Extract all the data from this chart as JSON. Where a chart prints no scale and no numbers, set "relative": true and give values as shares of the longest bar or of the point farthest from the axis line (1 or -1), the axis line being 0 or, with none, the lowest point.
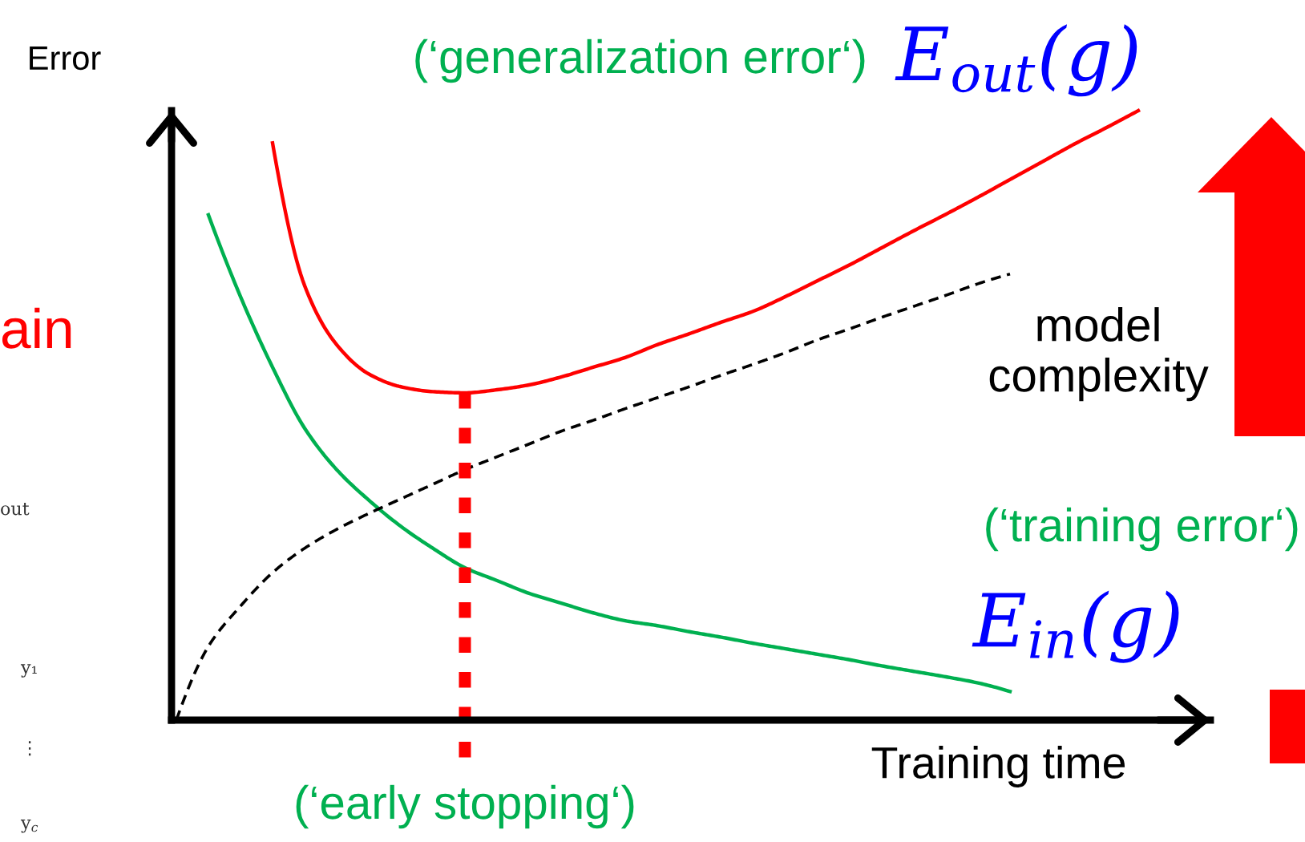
{
  "chart_data": {
    "type": "line",
    "relative": true,
    "xlabel": "Training time",
    "ylabel": "Error",
    "categories": [
      null,
      null,
      null,
      null,
      null,
      null,
      null,
      null,
      null,
      null,
      null,
      null,
      null,
      null,
      null,
      null,
      null,
      null,
      null,
      null,
      null,
      null,
      null,
      null,
      null,
      null,
      null,
      null,
      null,
      null,
      null
    ],
    "series": [
      {
        "name": "E$_{out}$(g)",
        "color": "#ff0000",
        "line_style": "solid",
        "values": [
          null,
          null,
          null,
          0.947,
          0.713,
          0.616,
          0.568,
          0.547,
          0.539,
          0.537,
          0.542,
          0.55,
          0.563,
          0.579,
          0.595,
          0.616,
          0.634,
          0.653,
          0.671,
          0.695,
          0.721,
          0.747,
          0.775,
          0.803,
          0.83,
          0.858,
          0.887,
          0.916,
          0.945,
          0.972,
          1.0
        ]
      },
      {
        "name": "E$_{in}$(g)",
        "color": "#00b050",
        "line_style": "solid",
        "values": [
          null,
          0.829,
          0.695,
          0.579,
          0.479,
          0.411,
          0.361,
          0.318,
          0.282,
          0.25,
          0.229,
          0.208,
          0.192,
          0.176,
          0.163,
          0.155,
          0.145,
          0.136,
          0.126,
          0.117,
          0.108,
          0.099,
          0.089,
          0.08,
          0.071,
          0.061,
          0.047,
          null,
          null,
          null,
          null
        ]
      },
      {
        "name": "model complexity",
        "color": "#000000",
        "line_style": "dashed",
        "values": [
          0,
          0.121,
          0.187,
          0.242,
          0.282,
          0.313,
          0.339,
          0.363,
          0.387,
          0.411,
          0.432,
          0.453,
          0.474,
          0.492,
          0.511,
          0.529,
          0.547,
          0.566,
          0.584,
          0.603,
          0.624,
          0.642,
          0.661,
          0.679,
          0.697,
          0.716,
          0.732,
          null,
          null,
          null,
          null
        ]
      }
    ],
    "annotations": [
      "(‘generalization error‘)",
      "(‘training error‘)",
      "(‘early stopping‘)",
      "ain",
      "out",
      "y₁",
      "⋮",
      "y$_{c}$"
    ]
  }
}
